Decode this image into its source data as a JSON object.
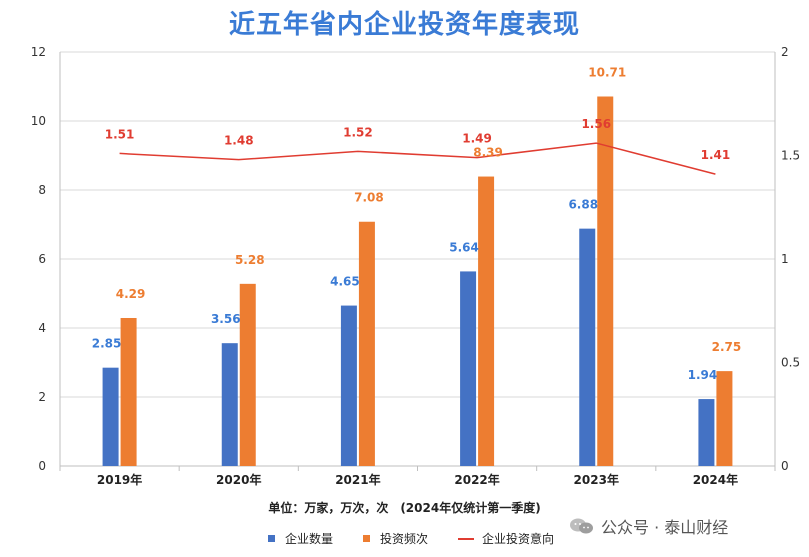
{
  "title": "近五年省内企业投资年度表现",
  "unit_note": "单位：万家，万次，次　(2024年仅统计第一季度)",
  "watermark": "公众号 · 泰山财经",
  "watermark_icon": "wechat-icon",
  "colors": {
    "title": "#3a7bd5",
    "series1": "#4472c4",
    "series2": "#ed7d31",
    "series3": "#e03c31",
    "label1": "#3a7bd5",
    "label2": "#ed7d31",
    "label3": "#e03c31"
  },
  "chart_data": {
    "type": "bar",
    "title": "近五年省内企业投资年度表现",
    "categories": [
      "2019年",
      "2020年",
      "2021年",
      "2022年",
      "2023年",
      "2024年"
    ],
    "ylim": [
      0,
      12
    ],
    "y_ticks": [
      "0",
      "2",
      "4",
      "6",
      "8",
      "10",
      "12"
    ],
    "y2lim": [
      0,
      2
    ],
    "y2_ticks": [
      "0",
      "0.5",
      "1",
      "1.5",
      "2"
    ],
    "grid": true,
    "legend_position": "bottom",
    "series": [
      {
        "name": "企业数量",
        "type": "bar",
        "axis": "left",
        "values": [
          2.85,
          3.56,
          4.65,
          5.64,
          6.88,
          1.94
        ],
        "labels": [
          "2.85",
          "3.56",
          "4.65",
          "5.64",
          "6.88",
          "1.94"
        ]
      },
      {
        "name": "投资频次",
        "type": "bar",
        "axis": "left",
        "values": [
          4.29,
          5.28,
          7.08,
          8.39,
          10.71,
          2.75
        ],
        "labels": [
          "4.29",
          "5.28",
          "7.08",
          "8.39",
          "10.71",
          "2.75"
        ]
      },
      {
        "name": "企业投资意向",
        "type": "line",
        "axis": "right",
        "values": [
          1.51,
          1.48,
          1.52,
          1.49,
          1.56,
          1.41
        ],
        "labels": [
          "1.51",
          "1.48",
          "1.52",
          "1.49",
          "1.56",
          "1.41"
        ]
      }
    ]
  }
}
